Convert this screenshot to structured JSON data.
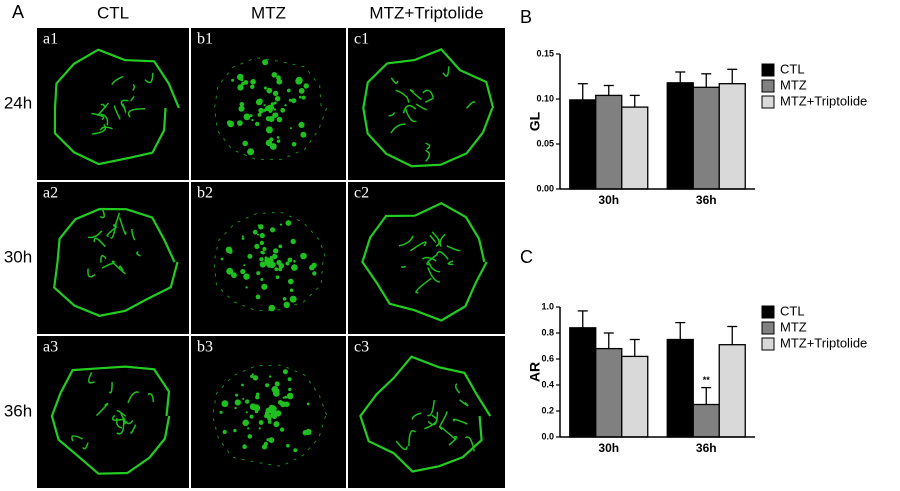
{
  "figure": {
    "panel_label": "A",
    "columns": [
      "CTL",
      "MTZ",
      "MTZ+Triptolide"
    ],
    "rows": [
      "24h",
      "30h",
      "36h"
    ],
    "images": [
      [
        "a1",
        "b1",
        "c1"
      ],
      [
        "a2",
        "b2",
        "c2"
      ],
      [
        "a3",
        "b3",
        "c3"
      ]
    ]
  },
  "chart_data": [
    {
      "type": "bar",
      "panel_label": "B",
      "y_label": "GL",
      "categories": [
        "30h",
        "36h"
      ],
      "series": [
        {
          "name": "CTL",
          "color": "#000000",
          "values": [
            0.099,
            0.118
          ],
          "errors": [
            0.018,
            0.012
          ]
        },
        {
          "name": "MTZ",
          "color": "#808080",
          "values": [
            0.104,
            0.113
          ],
          "errors": [
            0.011,
            0.015
          ]
        },
        {
          "name": "MTZ+Triptolide",
          "color": "#d9d9d9",
          "values": [
            0.091,
            0.117
          ],
          "errors": [
            0.013,
            0.016
          ]
        }
      ],
      "ylim": [
        0,
        0.15
      ],
      "yticks": [
        {
          "value": 0,
          "label": "0.00"
        },
        {
          "value": 0.05,
          "label": "0.05"
        },
        {
          "value": 0.1,
          "label": "0.10"
        },
        {
          "value": 0.15,
          "label": "0.15"
        }
      ],
      "legend": "right"
    },
    {
      "type": "bar",
      "panel_label": "C",
      "y_label": "AR",
      "categories": [
        "30h",
        "36h"
      ],
      "series": [
        {
          "name": "CTL",
          "color": "#000000",
          "values": [
            0.84,
            0.75
          ],
          "errors": [
            0.13,
            0.13
          ]
        },
        {
          "name": "MTZ",
          "color": "#808080",
          "values": [
            0.68,
            0.25
          ],
          "errors": [
            0.12,
            0.13
          ],
          "annotations": [
            null,
            "**"
          ]
        },
        {
          "name": "MTZ+Triptolide",
          "color": "#d9d9d9",
          "values": [
            0.62,
            0.71
          ],
          "errors": [
            0.13,
            0.14
          ]
        }
      ],
      "ylim": [
        0,
        1
      ],
      "yticks": [
        {
          "value": 0,
          "label": "0.0"
        },
        {
          "value": 0.2,
          "label": "0.2"
        },
        {
          "value": 0.4,
          "label": "0.4"
        },
        {
          "value": 0.6,
          "label": "0.6"
        },
        {
          "value": 0.8,
          "label": "0.8"
        },
        {
          "value": 1,
          "label": "1.0"
        }
      ],
      "legend": "right"
    }
  ]
}
